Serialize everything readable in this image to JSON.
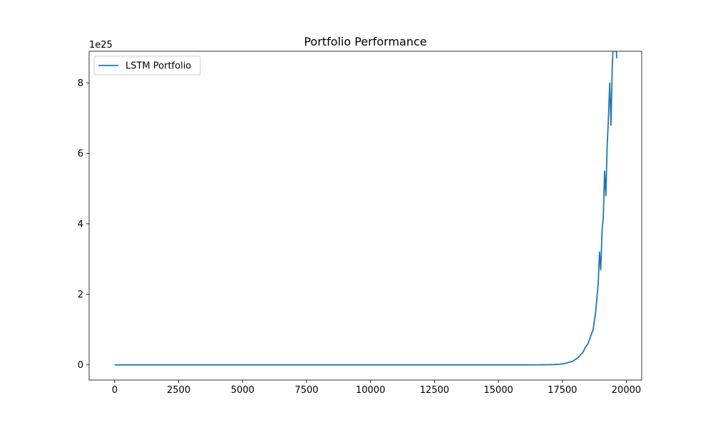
{
  "chart_data": {
    "type": "line",
    "title": "Portfolio Performance",
    "xlabel": "",
    "ylabel": "",
    "y_offset_label": "1e25",
    "y_scale": 1e+25,
    "xlim": [
      -1000,
      20600
    ],
    "ylim": [
      -0.43,
      8.9
    ],
    "x_ticks": [
      0,
      2500,
      5000,
      7500,
      10000,
      12500,
      15000,
      17500,
      20000
    ],
    "x_tick_labels": [
      "0",
      "2500",
      "5000",
      "7500",
      "10000",
      "12500",
      "15000",
      "17500",
      "20000"
    ],
    "y_ticks": [
      0,
      2,
      4,
      6,
      8
    ],
    "y_tick_labels": [
      "0",
      "2",
      "4",
      "6",
      "8"
    ],
    "grid": false,
    "legend_position": "upper left",
    "series": [
      {
        "name": "LSTM Portfolio",
        "color": "#1f77b4",
        "x": [
          0,
          2500,
          5000,
          7500,
          10000,
          12500,
          15000,
          16000,
          16500,
          17000,
          17200,
          17400,
          17600,
          17800,
          17900,
          18000,
          18100,
          18200,
          18300,
          18400,
          18500,
          18600,
          18700,
          18800,
          18850,
          18900,
          18950,
          19000,
          19050,
          19100,
          19150,
          19200,
          19250,
          19300,
          19350,
          19400,
          19450,
          19500,
          19550,
          19580,
          19600,
          19620
        ],
        "values": [
          0,
          0,
          0,
          0,
          0,
          0,
          0,
          0.0002,
          0.001,
          0.005,
          0.01,
          0.02,
          0.04,
          0.08,
          0.1,
          0.15,
          0.2,
          0.28,
          0.35,
          0.5,
          0.6,
          0.8,
          1.0,
          1.5,
          1.9,
          2.3,
          3.2,
          2.7,
          3.8,
          4.2,
          5.5,
          4.8,
          6.2,
          7.0,
          8.0,
          6.8,
          8.5,
          9.3,
          8.9,
          9.2,
          9.4,
          8.7
        ]
      }
    ]
  }
}
